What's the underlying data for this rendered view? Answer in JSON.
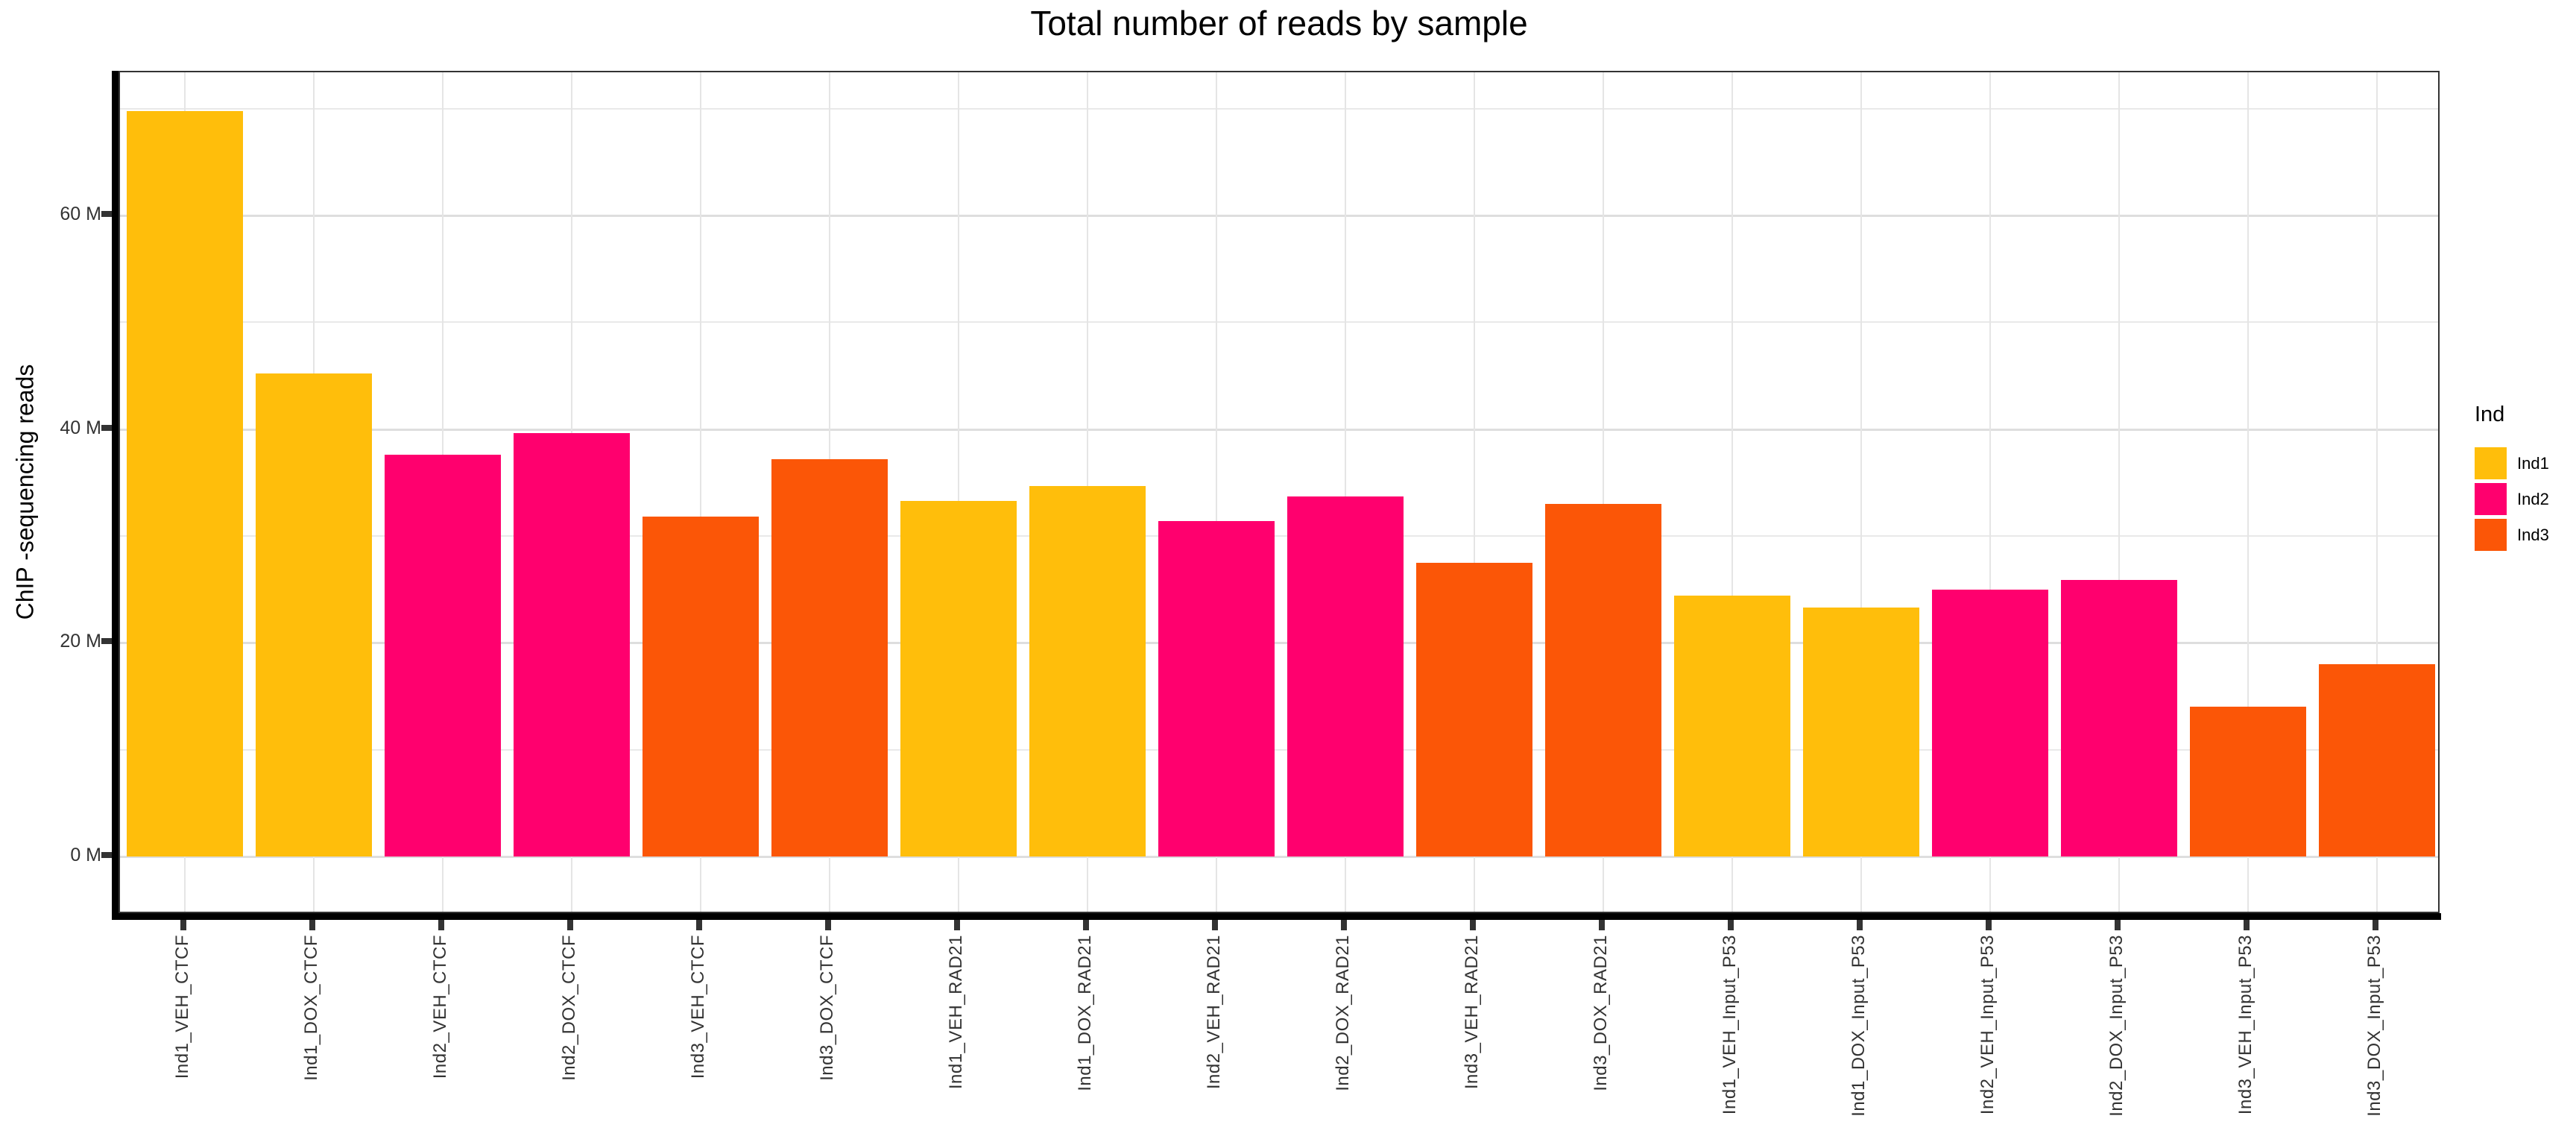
{
  "title": "Total number of reads by sample",
  "y_axis": {
    "label": "ChIP -sequencing reads",
    "tick_values": [
      0,
      20,
      40,
      60
    ],
    "tick_labels": [
      "0 M",
      "20 M",
      "40 M",
      "60 M"
    ],
    "minor_gridline_values": [
      10,
      30,
      50,
      70
    ],
    "unit": "millions of reads"
  },
  "legend": {
    "title": "Ind",
    "items": [
      {
        "label": "Ind1",
        "color": "#FFBE0B"
      },
      {
        "label": "Ind2",
        "color": "#FF006E"
      },
      {
        "label": "Ind3",
        "color": "#FB5607"
      }
    ]
  },
  "chart_data": {
    "type": "bar",
    "title": "Total number of reads by sample",
    "xlabel": "",
    "ylabel": "ChIP -sequencing reads",
    "ylim": [
      0,
      73
    ],
    "grid": "on",
    "legend_position": "right",
    "legend_title": "Ind",
    "categories": [
      "Ind1_VEH_CTCF",
      "Ind1_DOX_CTCF",
      "Ind2_VEH_CTCF",
      "Ind2_DOX_CTCF",
      "Ind3_VEH_CTCF",
      "Ind3_DOX_CTCF",
      "Ind1_VEH_RAD21",
      "Ind1_DOX_RAD21",
      "Ind2_VEH_RAD21",
      "Ind2_DOX_RAD21",
      "Ind3_VEH_RAD21",
      "Ind3_DOX_RAD21",
      "Ind1_VEH_Input_P53",
      "Ind1_DOX_Input_P53",
      "Ind2_VEH_Input_P53",
      "Ind2_DOX_Input_P53",
      "Ind3_VEH_Input_P53",
      "Ind3_DOX_Input_P53"
    ],
    "values_millions": [
      69.8,
      45.2,
      37.6,
      39.6,
      31.8,
      37.2,
      33.3,
      34.7,
      31.4,
      33.7,
      27.5,
      33.0,
      24.4,
      23.3,
      25.0,
      25.9,
      14.0,
      18.0
    ],
    "groups": [
      "Ind1",
      "Ind1",
      "Ind2",
      "Ind2",
      "Ind3",
      "Ind3",
      "Ind1",
      "Ind1",
      "Ind2",
      "Ind2",
      "Ind3",
      "Ind3",
      "Ind1",
      "Ind1",
      "Ind2",
      "Ind2",
      "Ind3",
      "Ind3"
    ],
    "group_colors": {
      "Ind1": "#FFBE0B",
      "Ind2": "#FF006E",
      "Ind3": "#FB5607"
    }
  }
}
